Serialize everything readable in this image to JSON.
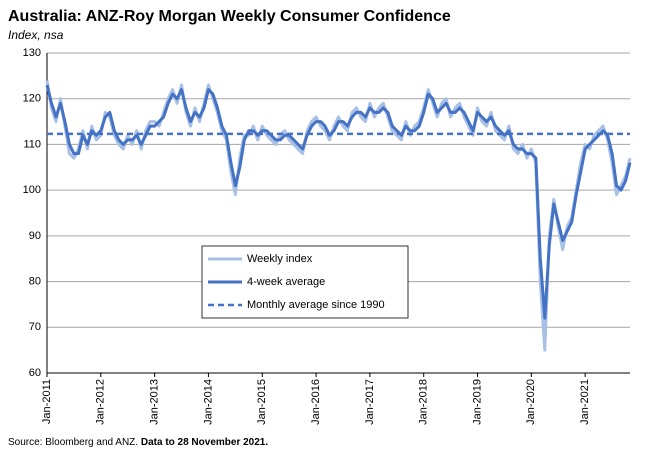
{
  "chart_data": {
    "type": "line",
    "title": "Australia: ANZ-Roy Morgan Weekly Consumer Confidence",
    "subtitle": "Index, nsa",
    "source": "Source: Bloomberg and ANZ.",
    "source_note": "Data to 28 November 2021.",
    "categories": [
      "Jan-2011",
      null,
      null,
      null,
      null,
      null,
      null,
      null,
      null,
      null,
      null,
      null,
      "Jan-2012",
      null,
      null,
      null,
      null,
      null,
      null,
      null,
      null,
      null,
      null,
      null,
      "Jan-2013",
      null,
      null,
      null,
      null,
      null,
      null,
      null,
      null,
      null,
      null,
      null,
      "Jan-2014",
      null,
      null,
      null,
      null,
      null,
      null,
      null,
      null,
      null,
      null,
      null,
      "Jan-2015",
      null,
      null,
      null,
      null,
      null,
      null,
      null,
      null,
      null,
      null,
      null,
      "Jan-2016",
      null,
      null,
      null,
      null,
      null,
      null,
      null,
      null,
      null,
      null,
      null,
      "Jan-2017",
      null,
      null,
      null,
      null,
      null,
      null,
      null,
      null,
      null,
      null,
      null,
      "Jan-2018",
      null,
      null,
      null,
      null,
      null,
      null,
      null,
      null,
      null,
      null,
      null,
      "Jan-2019",
      null,
      null,
      null,
      null,
      null,
      null,
      null,
      null,
      null,
      null,
      null,
      "Jan-2020",
      null,
      null,
      null,
      null,
      null,
      null,
      null,
      null,
      null,
      null,
      null,
      "Jan-2021",
      null,
      null,
      null,
      null,
      null,
      null,
      null,
      null,
      null,
      null
    ],
    "series": [
      {
        "name": "Weekly index",
        "color": "#a9c0e6",
        "width": 3,
        "values": [
          124,
          118,
          115,
          120,
          114,
          108,
          107,
          109,
          113,
          109,
          114,
          111,
          112,
          117,
          116,
          112,
          110,
          109,
          112,
          110,
          113,
          109,
          113,
          115,
          115,
          114,
          117,
          120,
          122,
          119,
          123,
          117,
          114,
          118,
          115,
          119,
          123,
          120,
          117,
          113,
          111,
          104,
          99,
          107,
          112,
          112,
          114,
          111,
          114,
          112,
          111,
          110,
          112,
          113,
          111,
          110,
          109,
          108,
          113,
          115,
          116,
          114,
          113,
          111,
          114,
          116,
          114,
          113,
          117,
          118,
          116,
          115,
          119,
          116,
          118,
          119,
          116,
          113,
          112,
          111,
          115,
          112,
          114,
          115,
          118,
          122,
          119,
          116,
          119,
          120,
          116,
          118,
          119,
          116,
          114,
          112,
          118,
          115,
          114,
          117,
          113,
          112,
          111,
          114,
          109,
          108,
          110,
          107,
          109,
          106,
          80,
          65,
          90,
          98,
          92,
          87,
          92,
          94,
          100,
          106,
          110,
          109,
          112,
          113,
          114,
          111,
          106,
          99,
          101,
          103,
          107
        ]
      },
      {
        "name": "4-week average",
        "color": "#4472c4",
        "width": 3,
        "values": [
          123,
          119,
          116,
          119,
          115,
          110,
          108,
          108,
          112,
          110,
          113,
          112,
          113,
          116,
          117,
          113,
          111,
          110,
          111,
          111,
          112,
          110,
          112,
          114,
          114,
          115,
          116,
          119,
          121,
          120,
          122,
          118,
          115,
          117,
          116,
          118,
          122,
          121,
          118,
          114,
          112,
          106,
          101,
          105,
          111,
          113,
          113,
          112,
          113,
          113,
          112,
          111,
          111,
          112,
          112,
          111,
          110,
          109,
          112,
          114,
          115,
          115,
          114,
          112,
          113,
          115,
          115,
          114,
          116,
          117,
          117,
          116,
          118,
          117,
          117,
          118,
          117,
          114,
          113,
          112,
          114,
          113,
          113,
          114,
          117,
          121,
          120,
          117,
          118,
          119,
          117,
          117,
          118,
          117,
          115,
          113,
          117,
          116,
          115,
          116,
          114,
          113,
          112,
          113,
          110,
          109,
          109,
          108,
          108,
          107,
          85,
          72,
          88,
          97,
          93,
          89,
          91,
          93,
          99,
          104,
          109,
          110,
          111,
          112,
          113,
          112,
          108,
          101,
          100,
          102,
          106
        ]
      }
    ],
    "reference_line": {
      "name": "Monthly average since 1990",
      "value": 112.3,
      "color": "#4472c4"
    },
    "ylim": [
      60,
      130
    ],
    "yticks": [
      60,
      70,
      80,
      90,
      100,
      110,
      120,
      130
    ],
    "grid": true
  }
}
